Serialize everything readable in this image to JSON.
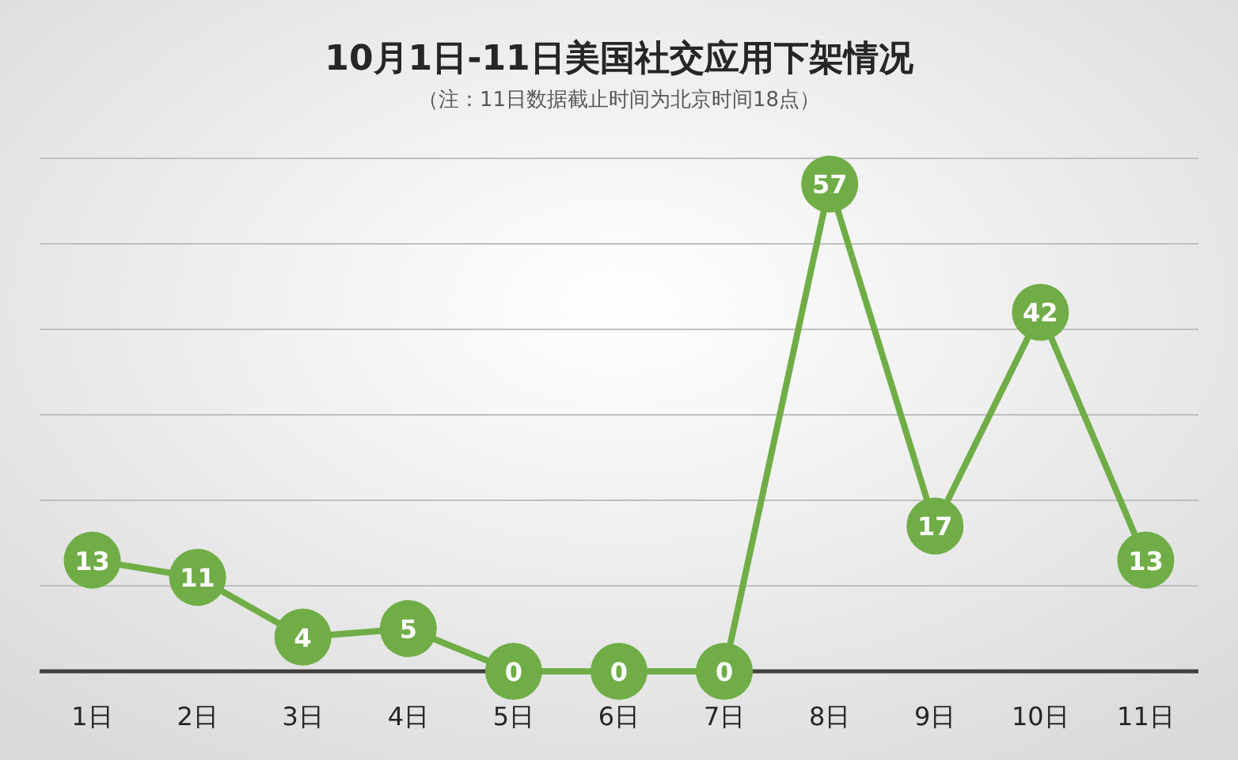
{
  "chart_data": {
    "type": "line",
    "title": "10月1日-11日美国社交应用下架情况",
    "subtitle": "（注：11日数据截止时间为北京时间18点）",
    "categories": [
      "1日",
      "2日",
      "3日",
      "4日",
      "5日",
      "6日",
      "7日",
      "8日",
      "9日",
      "10日",
      "11日"
    ],
    "series": [
      {
        "color": "#70ad47",
        "values": [
          13,
          11,
          4,
          5,
          0,
          0,
          0,
          57,
          17,
          42,
          13
        ]
      }
    ],
    "ylim": [
      0,
      60
    ],
    "yticks": [
      {
        "value": 0,
        "label": null
      },
      {
        "value": 10,
        "label": null
      },
      {
        "value": 20,
        "label": null
      },
      {
        "value": 30,
        "label": null
      },
      {
        "value": 40,
        "label": null
      },
      {
        "value": 50,
        "label": null
      },
      {
        "value": 60,
        "label": null
      }
    ],
    "tick_labels": "x",
    "grid": "y",
    "marker": "circle",
    "line_style": "solid",
    "data_labels": true
  }
}
